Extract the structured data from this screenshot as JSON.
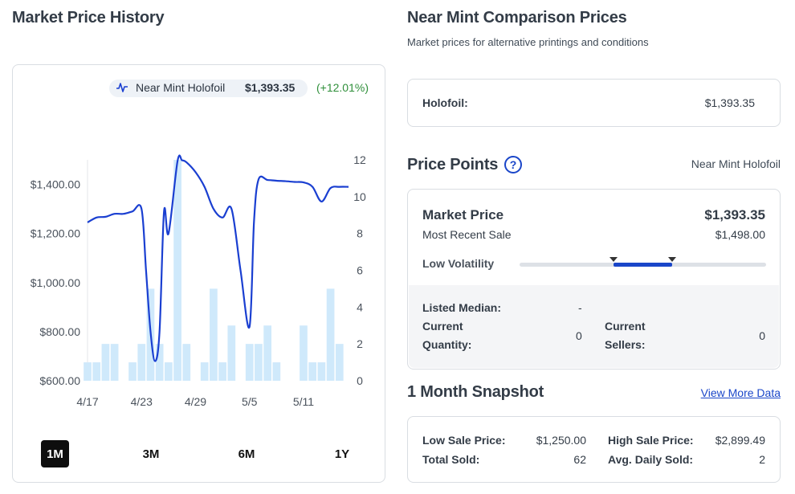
{
  "left": {
    "title": "Market Price History",
    "legend": {
      "name": "Near Mint Holofoil",
      "price": "$1,393.35",
      "change": "(+12.01%)"
    },
    "ranges": [
      "1M",
      "3M",
      "6M",
      "1Y"
    ],
    "active_range": "1M"
  },
  "right": {
    "comparison": {
      "title": "Near Mint Comparison Prices",
      "subtitle": "Market prices for alternative printings and conditions",
      "rows": [
        {
          "label": "Holofoil:",
          "value": "$1,393.35"
        }
      ]
    },
    "price_points": {
      "title": "Price Points",
      "help": "?",
      "condition": "Near Mint Holofoil",
      "market_price_label": "Market Price",
      "market_price_value": "$1,393.35",
      "recent_sale_label": "Most Recent Sale",
      "recent_sale_value": "$1,498.00",
      "volatility_label": "Low Volatility",
      "volatility_range": [
        0.38,
        0.62
      ],
      "listed_median_label": "Listed Median:",
      "listed_median_value": "-",
      "current_quantity_label_1": "Current",
      "current_quantity_label_2": "Quantity:",
      "current_quantity_value": "0",
      "current_sellers_label_1": "Current",
      "current_sellers_label_2": "Sellers:",
      "current_sellers_value": "0"
    },
    "snapshot": {
      "title": "1 Month Snapshot",
      "link": "View More Data",
      "low_sale_label": "Low Sale Price:",
      "low_sale_value": "$1,250.00",
      "high_sale_label": "High Sale Price:",
      "high_sale_value": "$2,899.49",
      "total_sold_label": "Total Sold:",
      "total_sold_value": "62",
      "avg_daily_label": "Avg. Daily Sold:",
      "avg_daily_value": "2"
    }
  },
  "colors": {
    "line": "#1a3fd1",
    "bars": "#cfe9fb",
    "accent": "#1a46c9",
    "positive": "#2f8f3a"
  },
  "chart_data": {
    "type": "line",
    "x_tick_labels": [
      "4/17",
      "4/23",
      "4/29",
      "5/5",
      "5/11"
    ],
    "x_tick_days": [
      0,
      6,
      12,
      18,
      24
    ],
    "x_range_days": [
      0,
      29
    ],
    "y_left_ticks": [
      "$600.00",
      "$800.00",
      "$1,000.00",
      "$1,200.00",
      "$1,400.00"
    ],
    "y_left_tick_values": [
      600,
      800,
      1000,
      1200,
      1400
    ],
    "ylim": [
      600,
      1500
    ],
    "y_right_ticks": [
      "0",
      "2",
      "4",
      "6",
      "8",
      "10",
      "12"
    ],
    "y_right_tick_values": [
      0,
      2,
      4,
      6,
      8,
      10,
      12
    ],
    "y2lim": [
      0,
      12
    ],
    "series": [
      {
        "name": "Near Mint Holofoil",
        "kind": "line",
        "x": [
          0,
          1,
          2,
          3,
          4,
          5,
          6,
          6.5,
          7,
          7.5,
          8,
          8.5,
          9,
          10,
          10.5,
          11,
          12,
          13,
          14,
          15,
          16,
          17,
          18,
          18.5,
          19,
          20,
          21,
          22,
          23,
          24,
          25,
          26,
          27,
          28,
          29
        ],
        "y": [
          1245,
          1265,
          1268,
          1280,
          1280,
          1290,
          1300,
          1050,
          800,
          680,
          800,
          1290,
          1200,
          1495,
          1498,
          1490,
          1450,
          1390,
          1300,
          1265,
          1300,
          1050,
          820,
          1250,
          1420,
          1418,
          1415,
          1413,
          1410,
          1408,
          1390,
          1330,
          1385,
          1390,
          1390
        ]
      },
      {
        "name": "Quantity sold",
        "kind": "bar",
        "axis": "right",
        "x": [
          0,
          1,
          2,
          3,
          5,
          6,
          7,
          8,
          9,
          10,
          11,
          13,
          14,
          15,
          16,
          18,
          19,
          20,
          21,
          24,
          25,
          26,
          27,
          28
        ],
        "values": [
          1,
          1,
          2,
          2,
          1,
          2,
          5,
          2,
          1,
          12,
          2,
          1,
          5,
          1,
          3,
          2,
          2,
          3,
          1,
          3,
          1,
          1,
          5,
          2
        ]
      }
    ]
  }
}
